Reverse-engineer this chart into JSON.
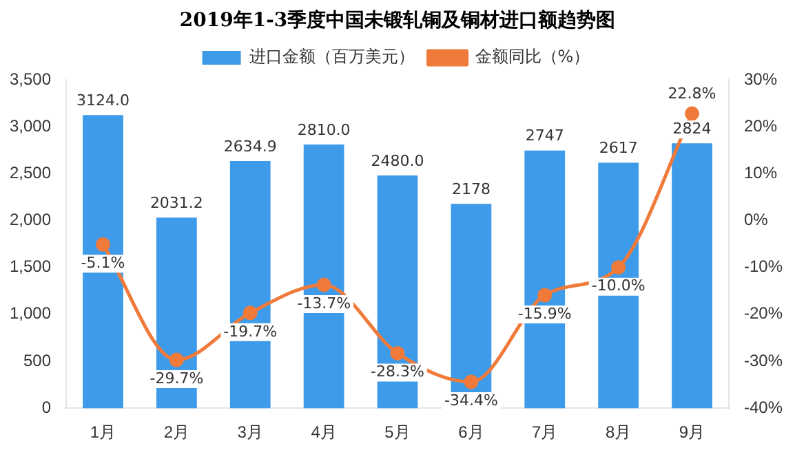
{
  "chart_data": {
    "type": "bar",
    "title": "2019年1-3季度中国未锻轧铜及铜材进口额趋势图",
    "categories": [
      "1月",
      "2月",
      "3月",
      "4月",
      "5月",
      "6月",
      "7月",
      "8月",
      "9月"
    ],
    "series": [
      {
        "name": "进口金额（百万美元）",
        "color": "#3d9be9",
        "values": [
          3124.0,
          2031.2,
          2634.9,
          2810.0,
          2480.0,
          2178,
          2747,
          2617,
          2824
        ],
        "value_labels": [
          "3124.0",
          "2031.2",
          "2634.9",
          "2810.0",
          "2480.0",
          "2178",
          "2747",
          "2617",
          "2824"
        ]
      },
      {
        "name": "金额同比（%）",
        "type": "line",
        "axis": "y2",
        "color": "#f07a3a",
        "values": [
          -5.1,
          -29.7,
          -19.7,
          -13.7,
          -28.3,
          -34.4,
          -15.9,
          -10.0,
          22.8
        ],
        "value_labels": [
          "-5.1%",
          "-29.7%",
          "-19.7%",
          "-13.7%",
          "-28.3%",
          "-34.4%",
          "-15.9%",
          "-10.0%",
          "22.8%"
        ]
      }
    ],
    "ylim": [
      0,
      3500
    ],
    "yticks": [
      0,
      500,
      {
        "value": 1000,
        "label": "1,000"
      },
      {
        "value": 1500,
        "label": "1,500"
      },
      {
        "value": 2000,
        "label": "2,000"
      },
      {
        "value": 2500,
        "label": "2,500"
      },
      {
        "value": 3000,
        "label": "3,000"
      },
      {
        "value": 3500,
        "label": "3,500"
      }
    ],
    "y2lim": [
      -40,
      30
    ],
    "y2ticks": [
      {
        "value": -40,
        "label": "-40%"
      },
      {
        "value": -30,
        "label": "-30%"
      },
      {
        "value": -20,
        "label": "-20%"
      },
      {
        "value": -10,
        "label": "-10%"
      },
      {
        "value": 0,
        "label": "0%"
      },
      {
        "value": 10,
        "label": "10%"
      },
      {
        "value": 20,
        "label": "20%"
      },
      {
        "value": 30,
        "label": "30%"
      }
    ],
    "legend": "top",
    "marker": "circle",
    "line_style": "solid"
  }
}
